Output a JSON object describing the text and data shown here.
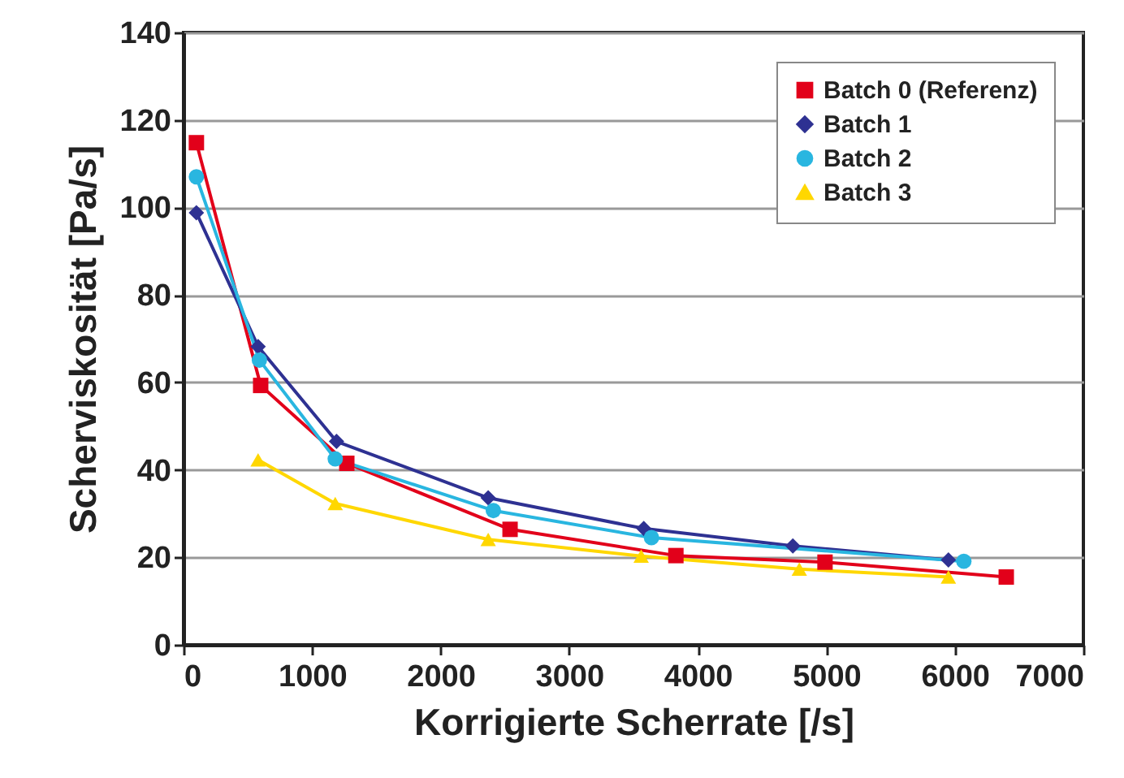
{
  "chart_data": {
    "type": "line",
    "xlabel": "Korrigierte Scherrate [/s]",
    "ylabel": "Scherviskosität [Pa/s]",
    "xlim": [
      0,
      7000
    ],
    "xticks": [
      0,
      1000,
      2000,
      3000,
      4000,
      5000,
      6000,
      7000
    ],
    "ylim": [
      0,
      140
    ],
    "yticks": [
      0,
      20,
      40,
      60,
      80,
      100,
      120,
      140
    ],
    "grid": "y",
    "legend": "top right",
    "series": [
      {
        "name": "Batch 0 (Referenz)",
        "color": "#e2001a",
        "marker": "square",
        "x": [
          100,
          600,
          1270,
          2540,
          3830,
          4990,
          6400
        ],
        "values": [
          114.8,
          59.3,
          41.5,
          26.4,
          20.4,
          18.9,
          15.5
        ]
      },
      {
        "name": "Batch 1",
        "color": "#2e3192",
        "marker": "diamond",
        "x": [
          100,
          580,
          1190,
          2370,
          3580,
          4740,
          5950
        ],
        "values": [
          98.8,
          68.2,
          46.5,
          33.6,
          26.6,
          22.6,
          19.4
        ]
      },
      {
        "name": "Batch 2",
        "color": "#29b6e0",
        "marker": "circle",
        "x": [
          100,
          590,
          1180,
          2410,
          3640,
          6070
        ],
        "values": [
          107,
          65.1,
          42.5,
          30.7,
          24.5,
          19.1
        ]
      },
      {
        "name": "Batch 3",
        "color": "#ffd700",
        "marker": "triangle",
        "x": [
          580,
          1180,
          2370,
          3560,
          4790,
          5950
        ],
        "values": [
          42.3,
          32.3,
          24.1,
          20.3,
          17.3,
          15.5
        ]
      }
    ]
  }
}
